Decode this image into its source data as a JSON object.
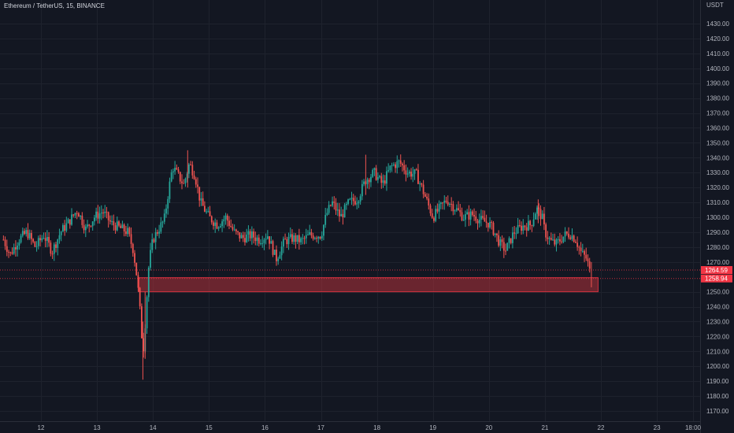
{
  "header": {
    "symbol_line": "Ethereum / TetherUS, 15, BINANCE"
  },
  "price_axis": {
    "unit_label": "USDT",
    "ticks": [
      1430,
      1420,
      1410,
      1400,
      1390,
      1380,
      1370,
      1360,
      1350,
      1340,
      1330,
      1320,
      1310,
      1300,
      1290,
      1280,
      1270,
      1250,
      1240,
      1230,
      1220,
      1210,
      1200,
      1190,
      1180,
      1170
    ]
  },
  "time_axis": {
    "labels": [
      "12",
      "13",
      "14",
      "15",
      "16",
      "17",
      "18",
      "19",
      "20",
      "21",
      "22",
      "23",
      "18:00"
    ]
  },
  "price_tags": [
    {
      "label": "1264.59",
      "value": 1264.59,
      "color": "#f23645"
    },
    {
      "label": "1258.94",
      "value": 1258.94,
      "color": "#f23645"
    }
  ],
  "chart_data": {
    "type": "candlestick",
    "title": "Ethereum / TetherUS, 15, BINANCE",
    "x_unit": "day of month",
    "ylim": [
      1165,
      1440
    ],
    "xlim": [
      11.33,
      23.67
    ],
    "colors": {
      "up": "#26a69a",
      "down": "#ef5350",
      "background": "#131722",
      "grid": "#1e222d",
      "zone": "#b2313a"
    },
    "support_zone": {
      "x_start": 13.75,
      "x_end": 21.95,
      "y_low": 1250,
      "y_high": 1259.5
    },
    "trend": [
      [
        11.33,
        1285
      ],
      [
        11.45,
        1275
      ],
      [
        11.6,
        1285
      ],
      [
        11.75,
        1290
      ],
      [
        11.9,
        1280
      ],
      [
        12.05,
        1288
      ],
      [
        12.2,
        1277
      ],
      [
        12.35,
        1290
      ],
      [
        12.5,
        1297
      ],
      [
        12.65,
        1305
      ],
      [
        12.8,
        1292
      ],
      [
        12.95,
        1300
      ],
      [
        13.1,
        1304
      ],
      [
        13.25,
        1296
      ],
      [
        13.4,
        1293
      ],
      [
        13.55,
        1290
      ],
      [
        13.65,
        1278
      ],
      [
        13.72,
        1258
      ],
      [
        13.78,
        1232
      ],
      [
        13.82,
        1208
      ],
      [
        13.85,
        1222
      ],
      [
        13.88,
        1240
      ],
      [
        13.93,
        1270
      ],
      [
        14.0,
        1285
      ],
      [
        14.1,
        1292
      ],
      [
        14.2,
        1298
      ],
      [
        14.28,
        1318
      ],
      [
        14.35,
        1334
      ],
      [
        14.45,
        1328
      ],
      [
        14.55,
        1322
      ],
      [
        14.65,
        1336
      ],
      [
        14.75,
        1328
      ],
      [
        14.85,
        1310
      ],
      [
        15.0,
        1300
      ],
      [
        15.15,
        1295
      ],
      [
        15.3,
        1300
      ],
      [
        15.45,
        1290
      ],
      [
        15.6,
        1286
      ],
      [
        15.75,
        1288
      ],
      [
        15.9,
        1285
      ],
      [
        16.05,
        1288
      ],
      [
        16.2,
        1272
      ],
      [
        16.35,
        1284
      ],
      [
        16.5,
        1286
      ],
      [
        16.65,
        1284
      ],
      [
        16.8,
        1288
      ],
      [
        17.0,
        1288
      ],
      [
        17.1,
        1302
      ],
      [
        17.2,
        1310
      ],
      [
        17.35,
        1300
      ],
      [
        17.5,
        1310
      ],
      [
        17.65,
        1312
      ],
      [
        17.8,
        1325
      ],
      [
        17.95,
        1330
      ],
      [
        18.1,
        1322
      ],
      [
        18.25,
        1334
      ],
      [
        18.4,
        1337
      ],
      [
        18.55,
        1330
      ],
      [
        18.7,
        1329
      ],
      [
        18.8,
        1320
      ],
      [
        18.9,
        1310
      ],
      [
        19.0,
        1300
      ],
      [
        19.1,
        1305
      ],
      [
        19.25,
        1312
      ],
      [
        19.4,
        1306
      ],
      [
        19.55,
        1300
      ],
      [
        19.7,
        1302
      ],
      [
        19.85,
        1298
      ],
      [
        20.0,
        1296
      ],
      [
        20.1,
        1290
      ],
      [
        20.2,
        1282
      ],
      [
        20.3,
        1278
      ],
      [
        20.45,
        1290
      ],
      [
        20.6,
        1294
      ],
      [
        20.75,
        1295
      ],
      [
        20.85,
        1306
      ],
      [
        20.95,
        1300
      ],
      [
        21.0,
        1290
      ],
      [
        21.1,
        1284
      ],
      [
        21.2,
        1282
      ],
      [
        21.35,
        1288
      ],
      [
        21.45,
        1289
      ],
      [
        21.55,
        1285
      ],
      [
        21.65,
        1276
      ],
      [
        21.75,
        1272
      ],
      [
        21.82,
        1260
      ]
    ]
  }
}
